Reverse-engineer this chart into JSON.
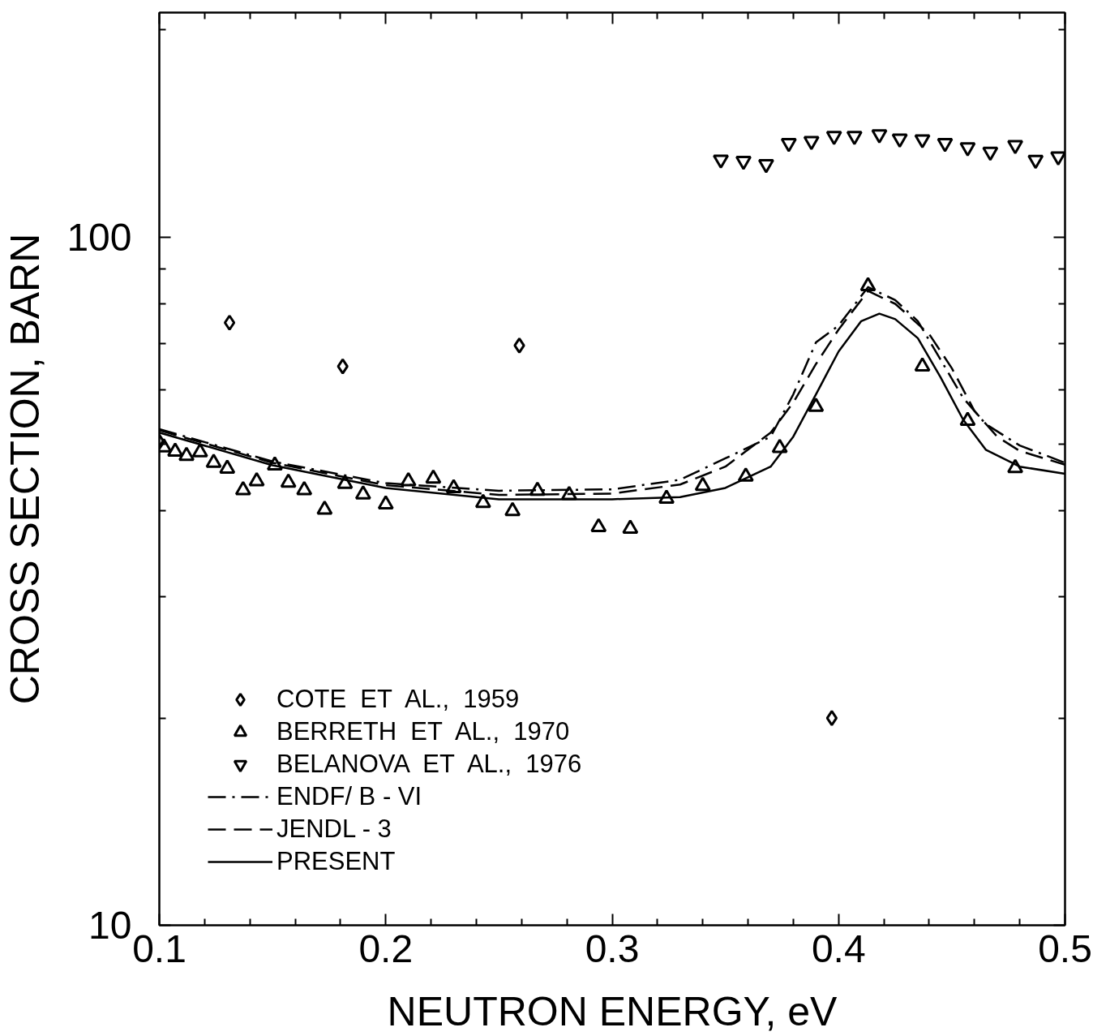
{
  "chart_data": {
    "type": "scatter",
    "xlabel": "NEUTRON ENERGY, eV",
    "ylabel": "CROSS SECTION, BARN",
    "log": "y",
    "grid": false,
    "legend": "bottom left",
    "xlim": [
      0.1,
      0.5
    ],
    "ylim": [
      10,
      212
    ],
    "xticks": [
      0.1,
      {
        "value": 0.12,
        "label": null
      },
      {
        "value": 0.14,
        "label": null
      },
      {
        "value": 0.16,
        "label": null
      },
      {
        "value": 0.18,
        "label": null
      },
      0.2,
      {
        "value": 0.22,
        "label": null
      },
      {
        "value": 0.24,
        "label": null
      },
      {
        "value": 0.26,
        "label": null
      },
      {
        "value": 0.28,
        "label": null
      },
      0.3,
      {
        "value": 0.32,
        "label": null
      },
      {
        "value": 0.34,
        "label": null
      },
      {
        "value": 0.36,
        "label": null
      },
      {
        "value": 0.38,
        "label": null
      },
      0.4,
      {
        "value": 0.42,
        "label": null
      },
      {
        "value": 0.44,
        "label": null
      },
      {
        "value": 0.46,
        "label": null
      },
      {
        "value": 0.48,
        "label": null
      },
      0.5
    ],
    "yticks": [
      10,
      {
        "value": 20,
        "label": null
      },
      {
        "value": 30,
        "label": null
      },
      {
        "value": 40,
        "label": null
      },
      {
        "value": 50,
        "label": null
      },
      {
        "value": 60,
        "label": null
      },
      {
        "value": 70,
        "label": null
      },
      {
        "value": 80,
        "label": null
      },
      {
        "value": 90,
        "label": null
      },
      100,
      {
        "value": 200,
        "label": null
      }
    ],
    "series": [
      {
        "name": "COTE  ET  AL.,  1959",
        "marker": "diamond",
        "color": "#000000",
        "x": [
          0.1,
          0.131,
          0.181,
          0.259,
          0.397
        ],
        "values": [
          50.4,
          75.1,
          64.9,
          69.6,
          20.0
        ]
      },
      {
        "name": "BERRETH  ET  AL.,  1970",
        "marker": "triangle",
        "color": "#000000",
        "x": [
          0.102,
          0.107,
          0.112,
          0.118,
          0.124,
          0.13,
          0.137,
          0.143,
          0.151,
          0.157,
          0.164,
          0.173,
          0.182,
          0.19,
          0.2,
          0.21,
          0.221,
          0.23,
          0.243,
          0.256,
          0.267,
          0.281,
          0.294,
          0.308,
          0.324,
          0.34,
          0.359,
          0.374,
          0.39,
          0.413,
          0.437,
          0.457,
          0.478
        ],
        "values": [
          49.5,
          48.8,
          48.1,
          48.7,
          47.0,
          46.1,
          42.9,
          44.2,
          46.6,
          44.0,
          42.9,
          40.2,
          43.8,
          42.3,
          40.9,
          44.2,
          44.6,
          43.2,
          41.1,
          40.0,
          42.8,
          42.2,
          37.9,
          37.7,
          41.7,
          43.5,
          44.9,
          49.4,
          56.7,
          84.9,
          64.9,
          54.1,
          46.2
        ]
      },
      {
        "name": "BELANOVA  ET  AL.,  1976",
        "marker": "triangle-down",
        "color": "#000000",
        "x": [
          0.348,
          0.358,
          0.368,
          0.378,
          0.388,
          0.398,
          0.407,
          0.418,
          0.427,
          0.437,
          0.447,
          0.457,
          0.467,
          0.478,
          0.487,
          0.497
        ],
        "values": [
          129.6,
          129,
          127.6,
          137,
          137.9,
          140.3,
          140.3,
          141,
          139,
          138.7,
          137,
          135,
          133,
          136,
          129.5,
          131
        ]
      },
      {
        "name": "ENDF/ B - VI",
        "type": "line",
        "line_style": "dashdot",
        "color": "#000000",
        "x": [
          0.1,
          0.15,
          0.2,
          0.25,
          0.3,
          0.33,
          0.35,
          0.37,
          0.38,
          0.39,
          0.4,
          0.413,
          0.425,
          0.435,
          0.445,
          0.455,
          0.465,
          0.48,
          0.5
        ],
        "values": [
          52.6,
          47.2,
          43.9,
          42.8,
          43.0,
          44.4,
          47.7,
          51.3,
          59.1,
          70.3,
          74.4,
          84.6,
          81,
          75.5,
          66.4,
          58.4,
          53.5,
          49.8,
          47.0
        ]
      },
      {
        "name": "JENDL - 3",
        "type": "line",
        "line_style": "dashed",
        "color": "#000000",
        "x": [
          0.1,
          0.15,
          0.2,
          0.25,
          0.3,
          0.33,
          0.35,
          0.37,
          0.38,
          0.39,
          0.4,
          0.413,
          0.425,
          0.44,
          0.45,
          0.46,
          0.47,
          0.48,
          0.5
        ],
        "values": [
          52.4,
          47.0,
          43.6,
          42.2,
          42.4,
          43.7,
          46.4,
          52,
          57.5,
          65.4,
          73.4,
          83.5,
          80,
          72.3,
          64.5,
          55.9,
          51.3,
          48.9,
          46.7
        ]
      },
      {
        "name": "PRESENT",
        "type": "line",
        "line_style": "solid",
        "color": "#000000",
        "x": [
          0.1,
          0.15,
          0.2,
          0.25,
          0.3,
          0.33,
          0.35,
          0.37,
          0.38,
          0.39,
          0.4,
          0.41,
          0.418,
          0.425,
          0.435,
          0.445,
          0.455,
          0.465,
          0.48,
          0.5
        ],
        "values": [
          52.0,
          46.6,
          43.2,
          41.6,
          41.6,
          41.9,
          43.2,
          46.4,
          51.3,
          59.1,
          68.2,
          75.5,
          77.4,
          76,
          71.3,
          62.6,
          54.3,
          49.1,
          46.4,
          45.3
        ]
      }
    ]
  }
}
